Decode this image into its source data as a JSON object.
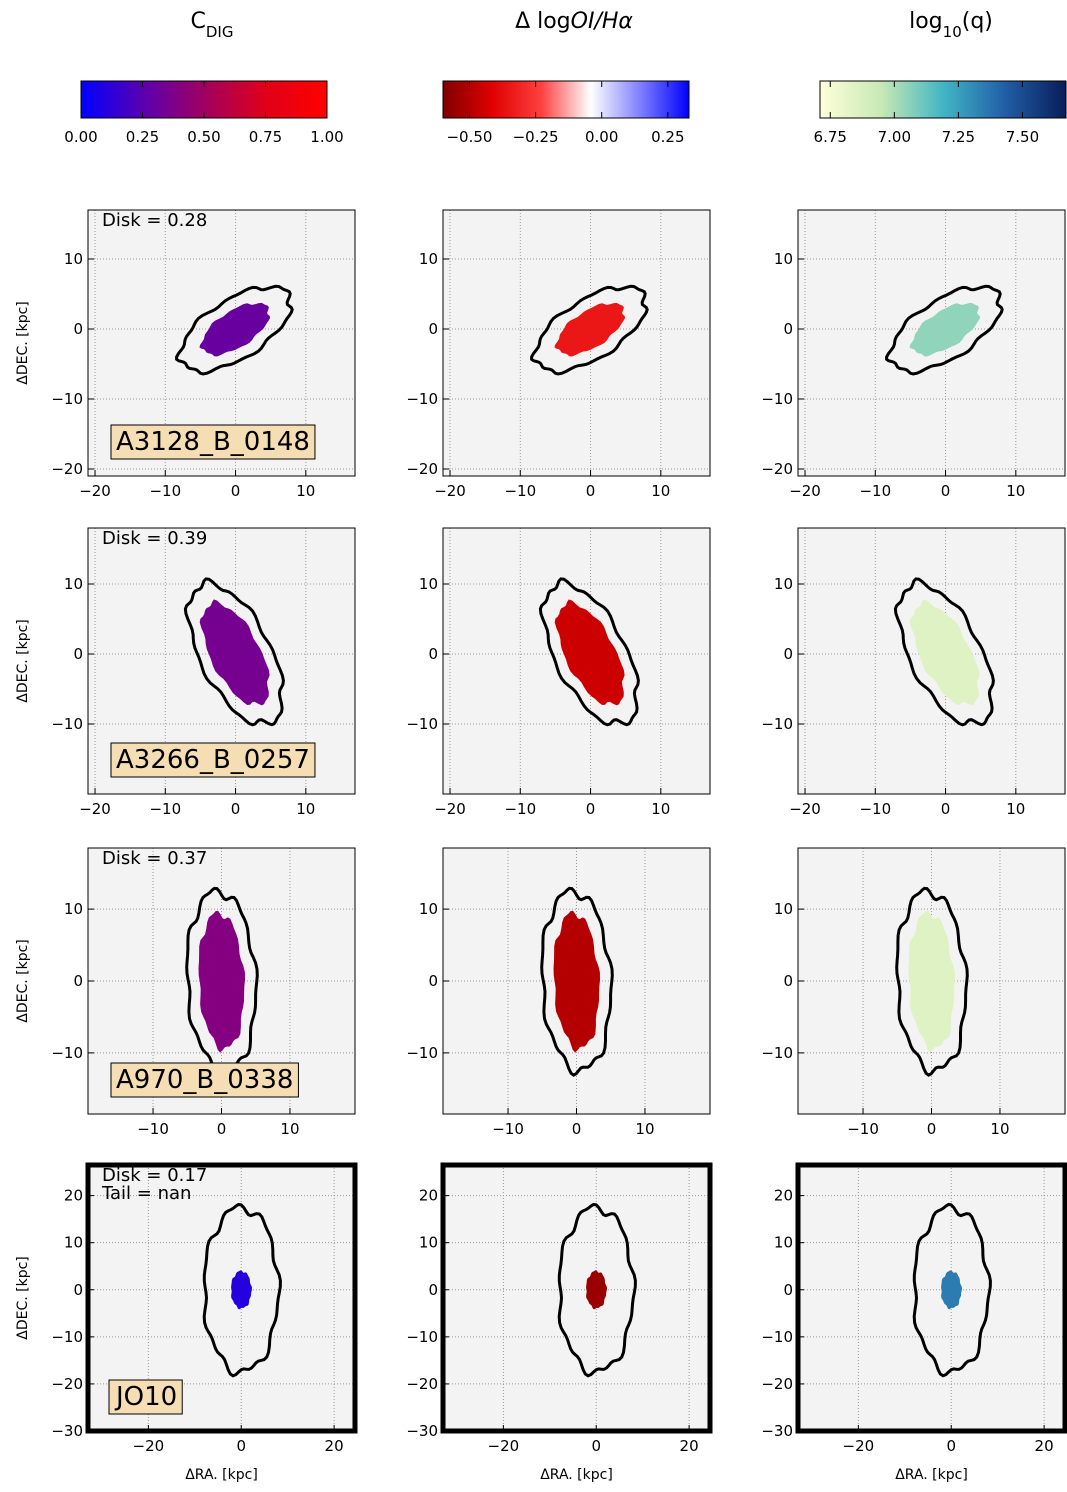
{
  "columns": [
    {
      "title": [
        {
          "text": "C"
        },
        {
          "text": "DIG",
          "style": "sub"
        }
      ],
      "colorbar": {
        "colors": [
          "#0000ff",
          "#5a00b0",
          "#a00060",
          "#e00018",
          "#ff0000"
        ],
        "lim": [
          0,
          1
        ],
        "ticks": [
          {
            "value": 0,
            "label": "0.00"
          },
          {
            "value": 0.25,
            "label": "0.25"
          },
          {
            "value": 0.5,
            "label": "0.50"
          },
          {
            "value": 0.75,
            "label": "0.75"
          },
          {
            "value": 1,
            "label": "1.00"
          }
        ]
      }
    },
    {
      "title": [
        {
          "text": "Δ log"
        },
        {
          "text": "OI/Hα",
          "style": "italic"
        }
      ],
      "colorbar": {
        "colors": [
          "#800000",
          "#e00000",
          "#ff4040",
          "#ffffff",
          "#8080ff",
          "#0000ff"
        ],
        "lim": [
          -0.6,
          0.33
        ],
        "ticks": [
          {
            "value": -0.5,
            "label": "−0.50"
          },
          {
            "value": -0.25,
            "label": "−0.25"
          },
          {
            "value": 0,
            "label": "0.00"
          },
          {
            "value": 0.25,
            "label": "0.25"
          }
        ]
      }
    },
    {
      "title": [
        {
          "text": "log"
        },
        {
          "text": "10",
          "style": "sub"
        },
        {
          "text": "(q)"
        }
      ],
      "colorbar": {
        "colors": [
          "#ffffd9",
          "#c7e9b4",
          "#41b6c4",
          "#225ea8",
          "#081d58"
        ],
        "lim": [
          6.71,
          7.67
        ],
        "ticks": [
          6.75,
          {
            "value": 7,
            "label": "7.00"
          },
          7.25,
          {
            "value": 7.5,
            "label": "7.50"
          }
        ]
      }
    }
  ],
  "rows": [
    {
      "name": "A3128_B_0148",
      "annotation": [
        "Disk = 0.28"
      ],
      "ylabel": "ΔDEC. [kpc]",
      "bold_frame": false,
      "xlim": [
        -21,
        17
      ],
      "ylim": [
        -21,
        17
      ],
      "xticks": [
        {
          "value": -20,
          "label": "−20"
        },
        {
          "value": -10,
          "label": "−10"
        },
        0,
        10
      ],
      "yticks": [
        {
          "value": -20,
          "label": "−20"
        },
        {
          "value": -10,
          "label": "−10"
        },
        0,
        10
      ],
      "contour": {
        "a": 9,
        "b": 4.2,
        "angle": 33
      },
      "blob": {
        "a": 5.5,
        "b": 2.6,
        "angle": 33
      },
      "levels": [
        0.3,
        -0.35,
        7.05
      ]
    },
    {
      "name": "A3266_B_0257",
      "annotation": [
        "Disk = 0.39"
      ],
      "ylabel": "ΔDEC. [kpc]",
      "bold_frame": false,
      "xlim": [
        -21,
        17
      ],
      "ylim": [
        -20,
        18
      ],
      "xticks": [
        {
          "value": -20,
          "label": "−20"
        },
        {
          "value": -10,
          "label": "−10"
        },
        0,
        10
      ],
      "yticks": [
        {
          "value": -10,
          "label": "−10"
        },
        0,
        10
      ],
      "contour": {
        "a": 11,
        "b": 5,
        "angle": -63
      },
      "blob": {
        "a": 8,
        "b": 3.5,
        "angle": -63
      },
      "levels": [
        0.35,
        -0.45,
        6.85
      ]
    },
    {
      "name": "A970_B_0338",
      "annotation": [
        "Disk = 0.37"
      ],
      "ylabel": "ΔDEC. [kpc]",
      "bold_frame": false,
      "xlim": [
        -19.5,
        19.5
      ],
      "ylim": [
        -18.5,
        18.5
      ],
      "xticks": [
        {
          "value": -10,
          "label": "−10"
        },
        0,
        10
      ],
      "yticks": [
        {
          "value": -10,
          "label": "−10"
        },
        0,
        10
      ],
      "contour": {
        "a": 12.5,
        "b": 5,
        "angle": 93
      },
      "blob": {
        "a": 9.5,
        "b": 3.3,
        "angle": 93
      },
      "levels": [
        0.4,
        -0.5,
        6.85
      ]
    },
    {
      "name": "JO10",
      "annotation": [
        "Disk = 0.17",
        "Tail = nan"
      ],
      "ylabel": "ΔDEC. [kpc]",
      "xlabel": "ΔRA. [kpc]",
      "bold_frame": true,
      "xlim": [
        -33,
        24.5
      ],
      "ylim": [
        -30,
        26.5
      ],
      "xticks": [
        {
          "value": -20,
          "label": "−20"
        },
        0,
        20
      ],
      "yticks": [
        {
          "value": -30,
          "label": "−30"
        },
        {
          "value": -20,
          "label": "−20"
        },
        {
          "value": -10,
          "label": "−10"
        },
        0,
        10,
        20
      ],
      "contour": {
        "a": 17.5,
        "b": 8,
        "angle": 90
      },
      "blob": {
        "a": 4,
        "b": 2.2,
        "angle": 90
      },
      "levels": [
        0.1,
        -0.55,
        7.35
      ]
    }
  ]
}
